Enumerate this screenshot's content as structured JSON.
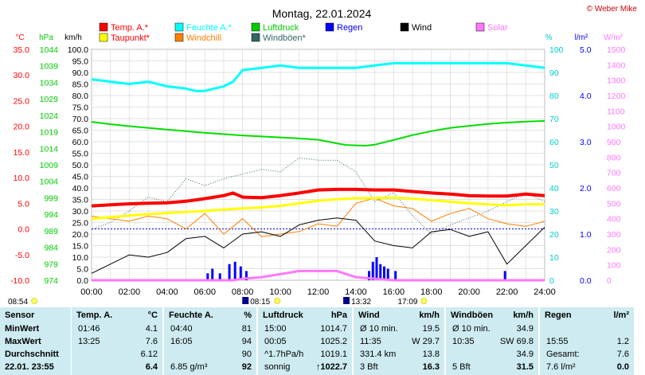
{
  "chart_data": {
    "type": "line",
    "title": "Montag, 22.01.2024",
    "copyright": "© Weber Mike",
    "axes": {
      "temp": {
        "label": "°C",
        "min": -10,
        "max": 35,
        "ticks": [
          "35.0",
          "30.0",
          "25.0",
          "20.0",
          "15.0",
          "10.0",
          "5.0",
          "0.0",
          "-5.0",
          "-10.0"
        ]
      },
      "pressure": {
        "label": "hPa",
        "min": 974,
        "max": 1044,
        "ticks": [
          "1044",
          "1039",
          "1034",
          "1029",
          "1024",
          "1019",
          "1014",
          "1009",
          "1004",
          "999",
          "994",
          "989",
          "984",
          "979",
          "974"
        ]
      },
      "wind": {
        "label": "km/h",
        "min": 0,
        "max": 100,
        "ticks": [
          "100.0",
          "95.0",
          "90.0",
          "85.0",
          "80.0",
          "75.0",
          "70.0",
          "65.0",
          "60.0",
          "55.0",
          "50.0",
          "45.0",
          "40.0",
          "35.0",
          "30.0",
          "25.0",
          "20.0",
          "15.0",
          "10.0",
          "5.0",
          "0.0"
        ]
      },
      "humidity": {
        "label": "%",
        "min": 0,
        "max": 100,
        "ticks": [
          "100",
          "90",
          "80",
          "70",
          "60",
          "50",
          "40",
          "30",
          "20",
          "10",
          "0"
        ]
      },
      "rain": {
        "label": "l/m²",
        "min": 0,
        "max": 5,
        "ticks": [
          "5.0",
          "4.0",
          "3.0",
          "2.0",
          "1.0",
          "0.0"
        ]
      },
      "solar": {
        "label": "W/m²",
        "min": 0,
        "max": 1500,
        "ticks": [
          "1500",
          "1400",
          "1300",
          "1200",
          "1100",
          "1000",
          "900",
          "800",
          "700",
          "600",
          "500",
          "400",
          "300",
          "200",
          "100",
          "0"
        ]
      },
      "time": {
        "ticks": [
          "00:00",
          "02:00",
          "04:00",
          "06:00",
          "08:00",
          "10:00",
          "12:00",
          "14:00",
          "16:00",
          "18:00",
          "20:00",
          "22:00",
          "24:00"
        ]
      }
    },
    "legend": [
      {
        "name": "Temp. A.*",
        "color": "#ff0000"
      },
      {
        "name": "Feuchte A.*",
        "color": "#00ffff"
      },
      {
        "name": "Luftdruck",
        "color": "#00cc00"
      },
      {
        "name": "Regen",
        "color": "#0000ff"
      },
      {
        "name": "Wind",
        "color": "#000000"
      },
      {
        "name": "Solar",
        "color": "#ff77ff"
      },
      {
        "name": "Taupunkt*",
        "color": "#ffff00"
      },
      {
        "name": "Windchill",
        "color": "#ff8000"
      },
      {
        "name": "Windböen*",
        "color": "#336666"
      }
    ],
    "series": {
      "temp": {
        "x": [
          0,
          1,
          2,
          3,
          4,
          5,
          6,
          7,
          7.5,
          8,
          9,
          10,
          11,
          12,
          13,
          14,
          15,
          16,
          17,
          18,
          19,
          20,
          21,
          22,
          23,
          24
        ],
        "y": [
          4.5,
          4.7,
          4.9,
          5.0,
          5.1,
          5.4,
          5.9,
          6.5,
          7.0,
          6.2,
          6.1,
          6.5,
          7.0,
          7.6,
          7.7,
          7.7,
          7.6,
          7.6,
          7.3,
          7.0,
          6.8,
          6.5,
          6.4,
          6.4,
          6.8,
          6.5
        ]
      },
      "dewpoint": {
        "x": [
          0,
          1,
          2,
          3,
          4,
          5,
          6,
          7,
          8,
          9,
          10,
          11,
          12,
          13,
          14,
          15,
          16,
          17,
          18,
          19,
          20,
          21,
          22,
          23,
          24
        ],
        "y": [
          2.0,
          2.3,
          2.6,
          2.9,
          3.1,
          3.3,
          3.5,
          3.8,
          4.0,
          4.2,
          4.5,
          5.0,
          5.5,
          5.8,
          6.0,
          6.0,
          6.1,
          5.9,
          5.6,
          5.3,
          5.0,
          4.8,
          4.6,
          4.8,
          4.8
        ]
      },
      "humidity": {
        "x": [
          0,
          1,
          2,
          3,
          4,
          5,
          5.5,
          6,
          6.5,
          7,
          7.5,
          8,
          9,
          10,
          11,
          12,
          13,
          14,
          15,
          16,
          17,
          18,
          19,
          20,
          21,
          22,
          23,
          24
        ],
        "y": [
          87,
          86,
          85,
          86,
          84,
          83,
          82,
          82,
          83,
          84,
          86,
          91,
          92,
          93,
          92,
          92,
          92,
          92,
          93,
          94,
          94,
          94,
          94,
          94,
          94,
          94,
          93,
          92
        ]
      },
      "pressure": {
        "x": [
          0,
          1,
          2,
          3,
          4,
          5,
          6,
          7,
          8,
          9,
          10,
          11,
          12,
          13,
          13.5,
          14,
          14.5,
          15,
          16,
          17,
          18,
          19,
          20,
          21,
          22,
          23,
          24
        ],
        "y": [
          1022.0,
          1021.3,
          1020.7,
          1020.2,
          1019.7,
          1019.2,
          1018.7,
          1018.3,
          1017.9,
          1017.6,
          1017.3,
          1017.0,
          1016.6,
          1015.5,
          1015.0,
          1014.9,
          1014.8,
          1015.1,
          1016.5,
          1018.0,
          1019.2,
          1020.2,
          1020.8,
          1021.4,
          1021.8,
          1022.1,
          1022.3
        ]
      },
      "wind": {
        "x": [
          0,
          1,
          2,
          3,
          4,
          5,
          6,
          7,
          8,
          9,
          10,
          11,
          12,
          13,
          14,
          15,
          16,
          17,
          18,
          19,
          20,
          21,
          22,
          23,
          24
        ],
        "y": [
          3,
          7,
          11,
          10,
          12,
          18,
          19,
          14,
          20,
          21,
          19,
          24,
          26,
          27,
          26,
          17,
          15,
          14,
          21,
          22,
          19,
          21,
          7,
          15,
          23
        ]
      },
      "gust": {
        "x": [
          0,
          1,
          2,
          3,
          4,
          5,
          6,
          7,
          8,
          9,
          10,
          11,
          12,
          13,
          14,
          15,
          16,
          17,
          18,
          19,
          20,
          21,
          22,
          23,
          24
        ],
        "y": [
          22,
          25,
          30,
          36,
          34,
          44,
          41,
          44,
          46,
          48,
          47,
          53,
          52,
          52,
          47,
          34,
          38,
          28,
          20,
          24,
          27,
          30,
          34,
          38,
          34
        ]
      },
      "windchill": {
        "x": [
          0,
          1,
          2,
          3,
          4,
          5,
          6,
          7,
          8,
          9,
          10,
          11,
          12,
          13,
          14,
          15,
          16,
          17,
          18,
          19,
          20,
          21,
          22,
          23,
          24
        ],
        "y": [
          2.5,
          2.0,
          1.5,
          2.5,
          2.0,
          0.0,
          3.0,
          -1.0,
          2.0,
          -1.5,
          -1.0,
          -0.5,
          1.0,
          0.5,
          5.0,
          6.0,
          4.5,
          4.0,
          1.5,
          3.0,
          4.0,
          2.0,
          1.0,
          0.5,
          1.5
        ]
      },
      "solar": {
        "x": [
          0,
          7.5,
          8,
          9,
          10,
          11,
          12,
          13,
          13.5,
          14,
          15,
          16,
          17,
          18,
          24
        ],
        "y": [
          0,
          0,
          10,
          20,
          40,
          60,
          60,
          60,
          40,
          20,
          10,
          0,
          0,
          0,
          0
        ]
      },
      "rain": {
        "x": [
          6.15,
          6.4,
          6.8,
          7.3,
          7.6,
          7.9,
          8.2,
          14.7,
          14.9,
          15.1,
          15.3,
          15.5,
          15.7,
          16.1,
          21.9
        ],
        "y": [
          0.15,
          0.25,
          0.15,
          0.35,
          0.4,
          0.3,
          0.2,
          0.2,
          0.4,
          0.5,
          0.35,
          0.3,
          0.25,
          0.2,
          0.2
        ]
      }
    },
    "sun_markers": {
      "sunrise_left": "08:54",
      "sunrise": "08:15",
      "sunset_left": "13:32",
      "sunset": "17:09"
    }
  },
  "table": {
    "col_sensor": {
      "header": "Sensor",
      "rows": [
        "MinWert",
        "MaxWert",
        "Durchschnitt",
        "22.01. 23:55"
      ]
    },
    "col_temp": {
      "header": "Temp. A.",
      "unit": "°C",
      "rows": [
        [
          "01:46",
          "4.1"
        ],
        [
          "13:25",
          "7.6"
        ],
        [
          "",
          "6.12"
        ],
        [
          "",
          "6.4"
        ]
      ]
    },
    "col_humidity": {
      "header": "Feuchte A.",
      "unit": "%",
      "rows": [
        [
          "04:40",
          "81"
        ],
        [
          "16:05",
          "94"
        ],
        [
          "",
          "90"
        ],
        [
          "6.85 g/m³",
          "92"
        ]
      ]
    },
    "col_pressure": {
      "header": "Luftdruck",
      "unit": "hPa",
      "rows": [
        [
          "15:00",
          "1014.7"
        ],
        [
          "00:05",
          "1025.2"
        ],
        [
          "^1.7hPa/h",
          "1019.1"
        ],
        [
          "sonnig",
          "↑1022.7"
        ]
      ]
    },
    "col_wind": {
      "header": "Wind",
      "unit": "km/h",
      "rows": [
        [
          "Ø 10 min.",
          "19.5"
        ],
        [
          "11:35",
          "W 29.7"
        ],
        [
          "331.4 km",
          "13.8"
        ],
        [
          "3 Bft",
          "16.3"
        ]
      ]
    },
    "col_gust": {
      "header": "Windböen",
      "unit": "km/h",
      "rows": [
        [
          "Ø 10 min.",
          "34.9"
        ],
        [
          "10:35",
          "SW 69.8"
        ],
        [
          "",
          "34.9"
        ],
        [
          "5 Bft",
          "31.5"
        ]
      ]
    },
    "col_rain": {
      "header": "Regen",
      "unit": "l/m²",
      "rows": [
        [
          "",
          ""
        ],
        [
          "15:55",
          "1.2"
        ],
        [
          "Gesamt:",
          "7.6"
        ],
        [
          "7.6 l/m²",
          "0.0"
        ]
      ]
    }
  }
}
